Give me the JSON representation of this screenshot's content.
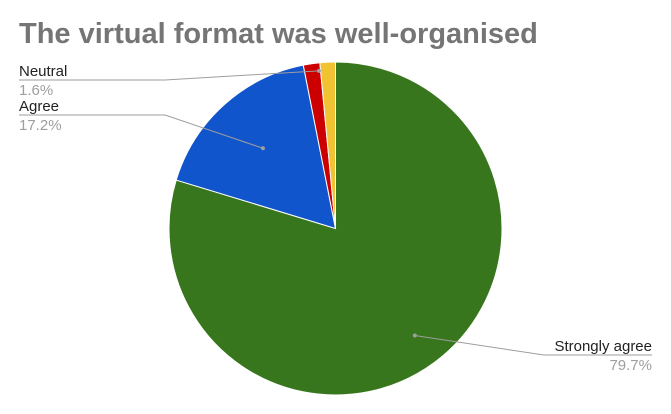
{
  "chart_data": {
    "type": "pie",
    "title": "The virtual format was well-organised",
    "slices": [
      {
        "label": "Strongly agree",
        "value": 79.7,
        "percent_label": "79.7%",
        "color": "#38761d"
      },
      {
        "label": "Agree",
        "value": 17.2,
        "percent_label": "17.2%",
        "color": "#1155cc"
      },
      {
        "label": "Neutral",
        "value": 1.6,
        "percent_label": "1.6%",
        "color": "#cc0000"
      },
      {
        "label": "",
        "value": 1.5,
        "percent_label": "",
        "color": "#f1c232"
      }
    ],
    "start_angle_deg": 0,
    "direction": "clockwise",
    "leader_line_color": "#9e9e9e"
  }
}
